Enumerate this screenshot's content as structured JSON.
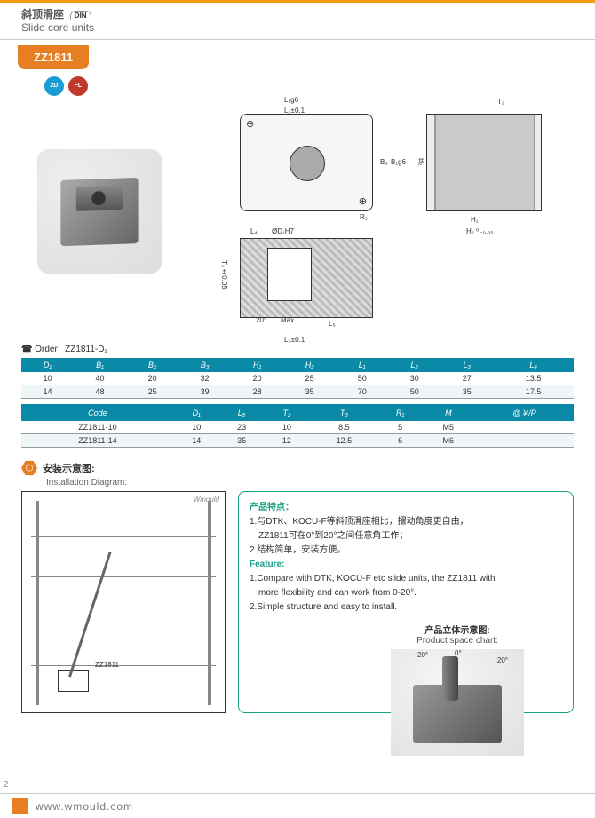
{
  "header": {
    "title_cn": "斜顶滑座",
    "title_en": "Slide core units",
    "din": "DIN"
  },
  "model": "ZZ1811",
  "badges": {
    "cad": "CAD 2D",
    "fl": "FL"
  },
  "dimensions": {
    "top": {
      "L1g6": "L₁g6",
      "L2": "L₂±0.1",
      "B1g6": "B₁g6",
      "B3": "B₃",
      "R1": "R₁"
    },
    "side": {
      "T2": "T₂",
      "B2": "B₂",
      "H1": "H₁",
      "H2": "H₂ ⁰₋₀.₀₅"
    },
    "section": {
      "L4": "L₄",
      "D1H7": "ØD₁H7",
      "T3": "T₃±0.05",
      "angle": "20°",
      "max": "Max",
      "L5": "L₅",
      "L3": "L₃±0.1"
    }
  },
  "order": {
    "icon": "☎",
    "label": "Order",
    "example": "ZZ1811-D₁"
  },
  "table1": {
    "columns": [
      "D₁",
      "B₁",
      "B₂",
      "B₃",
      "H₁",
      "H₂",
      "L₁",
      "L₂",
      "L₃",
      "L₄"
    ],
    "rows": [
      [
        "10",
        "40",
        "20",
        "32",
        "20",
        "25",
        "50",
        "30",
        "27",
        "13.5"
      ],
      [
        "14",
        "48",
        "25",
        "39",
        "28",
        "35",
        "70",
        "50",
        "35",
        "17.5"
      ]
    ]
  },
  "table2": {
    "columns": [
      "Code",
      "D₁",
      "L₅",
      "T₂",
      "T₃",
      "R₁",
      "M",
      "@￥/P"
    ],
    "rows": [
      [
        "ZZ1811-10",
        "10",
        "23",
        "10",
        "8.5",
        "5",
        "M5",
        ""
      ],
      [
        "ZZ1811-14",
        "14",
        "35",
        "12",
        "12.5",
        "6",
        "M6",
        ""
      ]
    ]
  },
  "install": {
    "title_cn": "安装示意图:",
    "title_en": "Installation Diagram:",
    "label": "ZZ1811",
    "wm": "Wmould"
  },
  "features": {
    "title_cn": "产品特点：",
    "lines_cn": [
      "1.与DTK、KOCU-F等斜顶滑座相比，摆动角度更自由，",
      "　ZZ1811可在0°到20°之间任意角工作；",
      "2.结构简单，安装方便。"
    ],
    "title_en": "Feature:",
    "lines_en": [
      "1.Compare with DTK, KOCU-F etc slide units, the ZZ1811 with",
      "　more flexibility and can work from 0-20°.",
      "2.Simple structure and easy to install."
    ]
  },
  "space": {
    "title_cn": "产品立体示意图:",
    "title_en": "Product space chart:",
    "a1": "20°",
    "a2": "0°",
    "a3": "20°"
  },
  "footer": {
    "url": "www.wmould.com"
  },
  "page": "2",
  "styling": {
    "brand_orange": "#e67e22",
    "table_header": "#0b8aa8",
    "feature_border": "#16a085",
    "bg": "#ffffff"
  }
}
